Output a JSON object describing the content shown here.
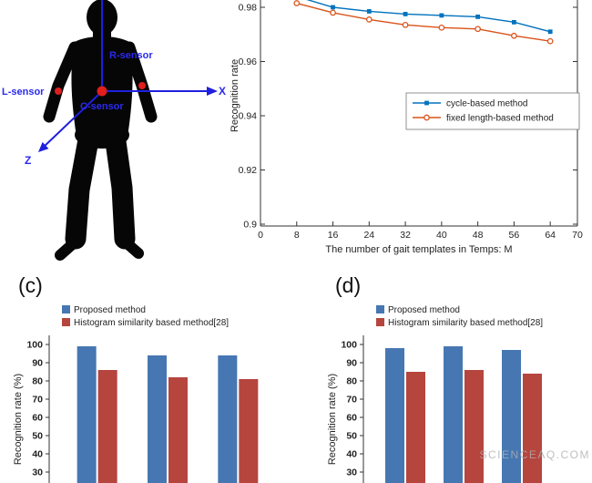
{
  "panels": {
    "c_label": "(c)",
    "d_label": "(d)"
  },
  "watermark": "SCIENCEAQ.COM",
  "body_figure": {
    "x_label": "X",
    "z_label": "Z",
    "r_sensor": "R-sensor",
    "l_sensor": "L-sensor",
    "c_sensor": "C-sensor",
    "colors": {
      "silhouette": "#060606",
      "annotation": "#1f1fe0",
      "sensor": "#e01e1e"
    }
  },
  "chart_data": [
    {
      "id": "gait-line-chart",
      "type": "line",
      "title": "",
      "xlabel": "The number of gait templates in Temps: M",
      "ylabel": "Recognition rate",
      "x": [
        8,
        16,
        24,
        32,
        40,
        48,
        56,
        64
      ],
      "series": [
        {
          "name": "cycle-based method",
          "color": "#0072bd",
          "marker": "filled-square",
          "values": [
            0.984,
            0.98,
            0.9785,
            0.9775,
            0.977,
            0.9765,
            0.9745,
            0.971
          ]
        },
        {
          "name": "fixed length-based method",
          "color": "#d95319",
          "marker": "open-circle",
          "values": [
            0.9815,
            0.978,
            0.9755,
            0.9735,
            0.9725,
            0.972,
            0.9695,
            0.9675
          ]
        }
      ],
      "xlim": [
        0,
        70
      ],
      "xticks": [
        0,
        8,
        16,
        24,
        32,
        40,
        48,
        56,
        64,
        70
      ],
      "yticks": [
        0.9,
        0.92,
        0.94,
        0.96,
        0.98
      ],
      "ylim": [
        0.9,
        0.988
      ],
      "legend_position": "middle-right",
      "grid": false
    },
    {
      "id": "bar-chart-c",
      "type": "bar",
      "ylabel": "Recognition rate (%)",
      "yticks": [
        30,
        40,
        50,
        60,
        70,
        80,
        90,
        100
      ],
      "ylim_visible": [
        30,
        100
      ],
      "groups": 3,
      "series": [
        {
          "name": "Proposed method",
          "color": "#4677b2",
          "values": [
            99,
            94,
            94
          ]
        },
        {
          "name": "Histogram similarity based method[28]",
          "color": "#b6453e",
          "values": [
            86,
            82,
            81
          ]
        }
      ],
      "legend_position": "top-left",
      "grid": false
    },
    {
      "id": "bar-chart-d",
      "type": "bar",
      "ylabel": "Recognition rate (%)",
      "yticks": [
        30,
        40,
        50,
        60,
        70,
        80,
        90,
        100
      ],
      "ylim_visible": [
        30,
        100
      ],
      "groups": 3,
      "series": [
        {
          "name": "Proposed method",
          "color": "#4677b2",
          "values": [
            98,
            99,
            97
          ]
        },
        {
          "name": "Histogram similarity based method[28]",
          "color": "#b6453e",
          "values": [
            85,
            86,
            84
          ]
        }
      ],
      "legend_position": "top-left",
      "grid": false
    }
  ]
}
